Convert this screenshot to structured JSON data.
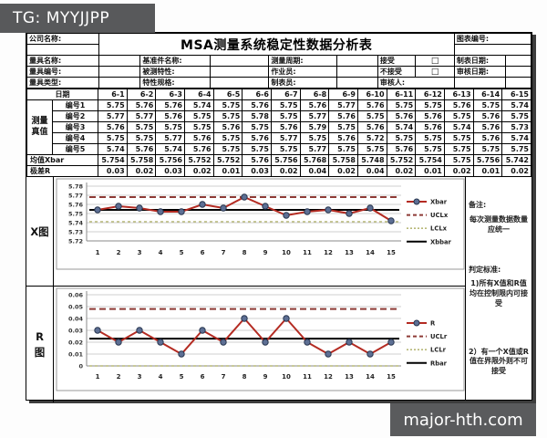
{
  "badges": {
    "tg": "TG: MYYJJPP",
    "watermark": "major-hth.com"
  },
  "colors": {
    "badge_bg": "#58595b",
    "watermark_bg": "#5a5b5d",
    "series_line": "#b42b22",
    "marker_fill": "#5d6f94",
    "marker_stroke": "#27354f",
    "ucl": "#8e3b36",
    "lcl": "#b7b878",
    "center": "#000000"
  },
  "header": {
    "company_label": "公司名称:",
    "title": "MSA测量系统稳定性数据分析表",
    "chart_no_label": "图表编号:",
    "checkbox_glyph": "□",
    "row1": {
      "c1": "量具名称:",
      "c2": "基准件名称:",
      "c3": "测量周期:",
      "c4": "接受",
      "c5": "制表日期:"
    },
    "row2": {
      "c1": "量具编号:",
      "c2": "被测特性:",
      "c3": "作业员:",
      "c4": "不接受",
      "c5": "审核日期:"
    },
    "row3": {
      "c1": "量具类型:",
      "c2": "特性规格:",
      "c3": "制表员:",
      "c4": "审核人:"
    }
  },
  "data_table": {
    "group_label": "测量\n真值",
    "date_label": "日期",
    "dates": [
      "6-1",
      "6-2",
      "6-3",
      "6-4",
      "6-5",
      "6-6",
      "6-7",
      "6-8",
      "6-9",
      "6-10",
      "6-11",
      "6-12",
      "6-13",
      "6-14",
      "6-15"
    ],
    "rows": [
      {
        "label": "编号1",
        "values": [
          5.75,
          5.76,
          5.76,
          5.74,
          5.75,
          5.76,
          5.75,
          5.76,
          5.77,
          5.76,
          5.75,
          5.75,
          5.76,
          5.75,
          5.74
        ]
      },
      {
        "label": "编号2",
        "values": [
          5.77,
          5.77,
          5.76,
          5.75,
          5.75,
          5.78,
          5.75,
          5.77,
          5.76,
          5.75,
          5.76,
          5.76,
          5.75,
          5.76,
          5.75
        ]
      },
      {
        "label": "编号3",
        "values": [
          5.76,
          5.75,
          5.75,
          5.75,
          5.76,
          5.75,
          5.76,
          5.79,
          5.75,
          5.76,
          5.74,
          5.76,
          5.74,
          5.76,
          5.73
        ]
      },
      {
        "label": "编号4",
        "values": [
          5.75,
          5.75,
          5.77,
          5.76,
          5.75,
          5.76,
          5.77,
          5.75,
          5.76,
          5.72,
          5.75,
          5.75,
          5.75,
          5.76,
          5.74
        ]
      },
      {
        "label": "编号5",
        "values": [
          5.74,
          5.76,
          5.74,
          5.76,
          5.75,
          5.75,
          5.75,
          5.77,
          5.75,
          5.75,
          5.76,
          5.75,
          5.75,
          5.75,
          5.75
        ]
      }
    ],
    "xbar_label": "均值Xbar",
    "xbar": [
      5.754,
      5.758,
      5.756,
      5.752,
      5.752,
      5.76,
      5.756,
      5.768,
      5.758,
      5.748,
      5.752,
      5.754,
      5.75,
      5.756,
      5.742
    ],
    "range_label": "极差R",
    "range": [
      0.03,
      0.02,
      0.03,
      0.02,
      0.01,
      0.03,
      0.02,
      0.04,
      0.02,
      0.04,
      0.02,
      0.01,
      0.02,
      0.01,
      0.02
    ]
  },
  "sections": {
    "x_chart_label": "X图",
    "r_chart_label": "R图"
  },
  "chart_data": [
    {
      "type": "line",
      "title": "X图",
      "x": [
        1,
        2,
        3,
        4,
        5,
        6,
        7,
        8,
        9,
        10,
        11,
        12,
        13,
        14,
        15
      ],
      "series": [
        {
          "name": "Xbar",
          "style": "series",
          "values": [
            5.754,
            5.758,
            5.756,
            5.752,
            5.752,
            5.76,
            5.756,
            5.768,
            5.758,
            5.748,
            5.752,
            5.754,
            5.75,
            5.756,
            5.742
          ]
        },
        {
          "name": "UCLx",
          "style": "ucl",
          "value": 5.768
        },
        {
          "name": "LCLx",
          "style": "lcl",
          "value": 5.741
        },
        {
          "name": "Xbbar",
          "style": "center",
          "value": 5.754
        }
      ],
      "ylim": [
        5.72,
        5.78
      ],
      "ytick_values": [
        5.72,
        5.73,
        5.74,
        5.75,
        5.76,
        5.77,
        5.78
      ],
      "ytick_labels": [
        "5.72",
        "5.73",
        "5.74",
        "5.75",
        "5.76",
        "5.77",
        "5.78"
      ],
      "xlabel": "",
      "ylabel": "",
      "legend_position": "right",
      "grid": true
    },
    {
      "type": "line",
      "title": "R图",
      "x": [
        1,
        2,
        3,
        4,
        5,
        6,
        7,
        8,
        9,
        10,
        11,
        12,
        13,
        14,
        15
      ],
      "series": [
        {
          "name": "R",
          "style": "series",
          "values": [
            0.03,
            0.02,
            0.03,
            0.02,
            0.01,
            0.03,
            0.02,
            0.04,
            0.02,
            0.04,
            0.02,
            0.01,
            0.02,
            0.01,
            0.02
          ]
        },
        {
          "name": "UCLr",
          "style": "ucl",
          "value": 0.048
        },
        {
          "name": "LCLr",
          "style": "lcl",
          "value": 0
        },
        {
          "name": "Rbar",
          "style": "center",
          "value": 0.023
        }
      ],
      "ylim": [
        0,
        0.06
      ],
      "ytick_values": [
        0,
        0.01,
        0.02,
        0.03,
        0.04,
        0.05,
        0.06
      ],
      "ytick_labels": [
        "0",
        "0.01",
        "0.02",
        "0.03",
        "0.04",
        "0.05",
        "0.06"
      ],
      "xlabel": "",
      "ylabel": "",
      "legend_position": "right",
      "grid": true
    }
  ],
  "notes": {
    "remark_label": "备注:",
    "remark_1": "每次测量数据数量应统一",
    "criteria_label": "判定标准:",
    "criteria_1": "1)所有X值和R值均在控制限内可接受",
    "criteria_2": "2）有一个X值或R值在界限外则不可接受"
  }
}
